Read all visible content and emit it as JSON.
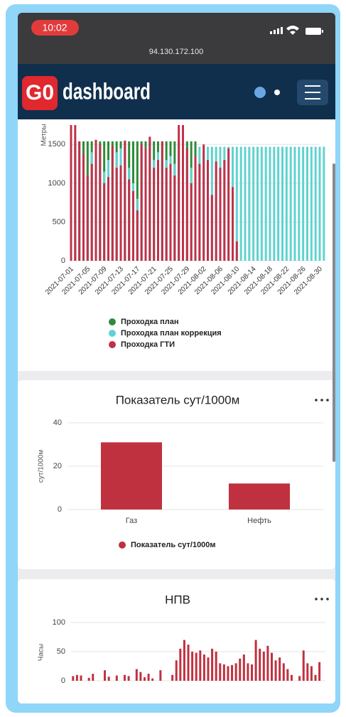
{
  "status_bar": {
    "time": "10:02",
    "url": "94.130.172.100"
  },
  "header": {
    "logo": "G0",
    "brand": "dashboard"
  },
  "chart_data": [
    {
      "type": "bar",
      "y_label": "Метры",
      "categories": [
        "2021-07-01",
        null,
        null,
        null,
        "2021-07-05",
        null,
        null,
        null,
        "2021-07-09",
        null,
        null,
        null,
        "2021-07-13",
        null,
        null,
        null,
        "2021-07-17",
        null,
        null,
        null,
        "2021-07-21",
        null,
        null,
        null,
        "2021-07-25",
        null,
        null,
        null,
        "2021-07-29",
        null,
        null,
        null,
        "2021-08-02",
        null,
        null,
        null,
        "2021-08-06",
        null,
        null,
        null,
        "2021-08-10",
        null,
        null,
        null,
        "2021-08-14",
        null,
        null,
        null,
        "2021-08-18",
        null,
        null,
        null,
        "2021-08-22",
        null,
        null,
        null,
        "2021-08-26",
        null,
        null,
        null,
        "2021-08-30",
        null
      ],
      "series": [
        {
          "name": "Проходка план",
          "color": "#2e8b3a",
          "values": [
            1540,
            1540,
            1540,
            1540,
            1540,
            1540,
            1540,
            1540,
            1540,
            1540,
            1540,
            1540,
            1540,
            1540,
            1540,
            1540,
            1540,
            1540,
            1540,
            1540,
            1540,
            1540,
            1540,
            1540,
            1540,
            1540,
            1540,
            1540,
            1540,
            1540,
            1540,
            null,
            null,
            null,
            null,
            null,
            null,
            null,
            null,
            null,
            null,
            null,
            null,
            null,
            null,
            null,
            null,
            null,
            null,
            null,
            null,
            null,
            null,
            null,
            null,
            null,
            null,
            null,
            null,
            null,
            null,
            null
          ]
        },
        {
          "name": "Проходка план коррекция",
          "color": "#5fd3cf",
          "values": [
            1450,
            1460,
            1450,
            1350,
            1100,
            1400,
            1450,
            1430,
            1150,
            1300,
            1450,
            1400,
            1450,
            1450,
            1200,
            1000,
            800,
            1350,
            1450,
            1450,
            1300,
            1400,
            1450,
            1300,
            1350,
            1250,
            1450,
            1450,
            1400,
            1200,
            1350,
            1470,
            1470,
            1470,
            1470,
            1470,
            1470,
            1470,
            1470,
            1470,
            1470,
            1470,
            1470,
            1470,
            1470,
            1470,
            1470,
            1470,
            1470,
            1470,
            1470,
            1470,
            1470,
            1470,
            1470,
            1470,
            1470,
            1470,
            1470,
            1470,
            1470,
            1470
          ]
        },
        {
          "name": "Проходка ГТИ",
          "color": "#c0314a",
          "values": [
            1750,
            1750,
            1540,
            1380,
            1100,
            1250,
            1560,
            1500,
            1000,
            1080,
            1480,
            1200,
            1230,
            1550,
            1050,
            900,
            650,
            1500,
            1450,
            1600,
            1200,
            1300,
            1540,
            1200,
            1250,
            1100,
            1750,
            1750,
            1450,
            1000,
            1350,
            1250,
            1500,
            1300,
            850,
            1280,
            1200,
            1300,
            1450,
            950,
            250,
            null,
            null,
            null,
            null,
            null,
            null,
            null,
            null,
            null,
            null,
            null,
            null,
            null,
            null,
            null,
            null,
            null,
            null,
            null,
            null,
            null
          ]
        }
      ],
      "ylim": [
        0,
        1750
      ],
      "yticks": [
        0,
        500,
        1000,
        1500
      ],
      "grid": true
    },
    {
      "type": "bar",
      "title": "Показатель сут/1000м",
      "y_label": "сут/1000м",
      "categories": [
        "Газ",
        "Нефть"
      ],
      "series": [
        {
          "name": "Показатель сут/1000м",
          "color": "#c0313f",
          "values": [
            31,
            12
          ]
        }
      ],
      "ylim": [
        0,
        40
      ],
      "yticks": [
        0,
        20,
        40
      ],
      "grid": true
    },
    {
      "type": "bar",
      "title": "НПВ",
      "y_label": "Часы",
      "series": [
        {
          "color": "#c0313f",
          "values": [
            8,
            10,
            9,
            0,
            5,
            12,
            0,
            0,
            18,
            7,
            0,
            9,
            0,
            10,
            8,
            0,
            20,
            15,
            6,
            12,
            4,
            0,
            18,
            0,
            0,
            10,
            35,
            55,
            70,
            62,
            50,
            48,
            52,
            45,
            40,
            55,
            50,
            30,
            28,
            25,
            27,
            30,
            38,
            45,
            30,
            28,
            70,
            55,
            50,
            60,
            48,
            35,
            40,
            30,
            20,
            10,
            0,
            8,
            52,
            30,
            25,
            10,
            32,
            0
          ]
        }
      ],
      "ylim": [
        0,
        100
      ],
      "yticks": [
        0,
        50,
        100
      ],
      "grid": true
    }
  ]
}
